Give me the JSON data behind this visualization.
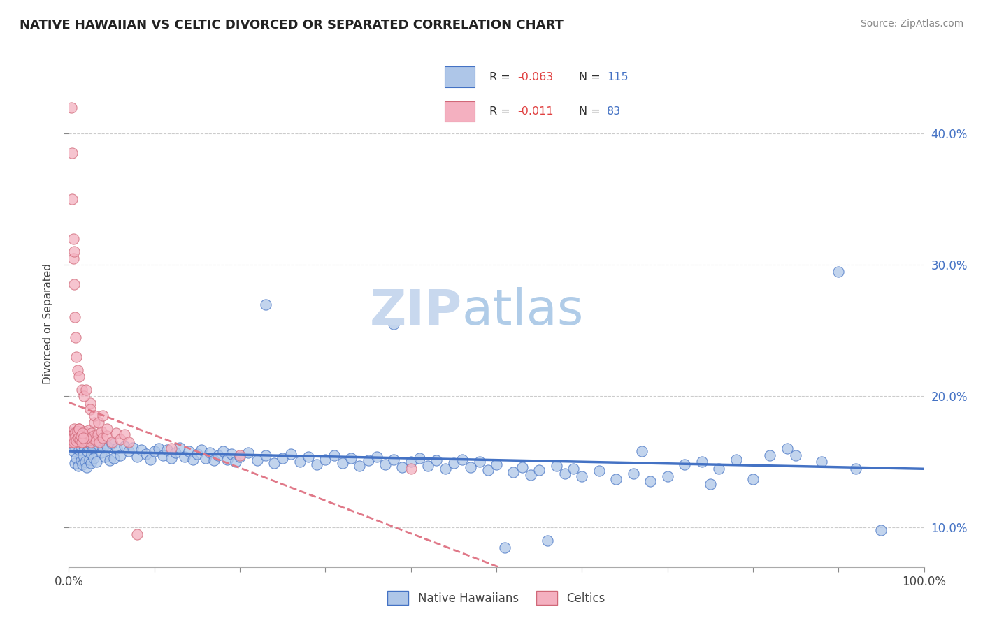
{
  "title": "NATIVE HAWAIIAN VS CELTIC DIVORCED OR SEPARATED CORRELATION CHART",
  "source": "Source: ZipAtlas.com",
  "ylabel": "Divorced or Separated",
  "color_hawaiian": "#aec6e8",
  "color_hawaiian_edge": "#4472c4",
  "color_celtic": "#f4b0c0",
  "color_celtic_edge": "#d06878",
  "color_hawaiian_line": "#4472c4",
  "color_celtic_line": "#e07888",
  "watermark_zip": "ZIP",
  "watermark_atlas": "atlas",
  "xlim": [
    0,
    100
  ],
  "ylim": [
    7,
    44
  ],
  "ytick_positions": [
    10,
    20,
    30,
    40
  ],
  "yticklabels_right": [
    "10.0%",
    "20.0%",
    "30.0%",
    "40.0%"
  ],
  "xtick_positions": [
    0,
    10,
    20,
    30,
    40,
    50,
    60,
    70,
    80,
    90,
    100
  ],
  "hawaiian_points": [
    [
      0.3,
      16.5
    ],
    [
      0.5,
      15.8
    ],
    [
      0.6,
      17.2
    ],
    [
      0.7,
      14.9
    ],
    [
      0.8,
      16.1
    ],
    [
      0.9,
      15.3
    ],
    [
      1.0,
      16.8
    ],
    [
      1.1,
      14.7
    ],
    [
      1.2,
      15.9
    ],
    [
      1.3,
      16.3
    ],
    [
      1.4,
      15.1
    ],
    [
      1.5,
      16.7
    ],
    [
      1.6,
      14.8
    ],
    [
      1.7,
      15.5
    ],
    [
      1.8,
      16.2
    ],
    [
      1.9,
      15.0
    ],
    [
      2.0,
      16.5
    ],
    [
      2.1,
      14.6
    ],
    [
      2.2,
      15.8
    ],
    [
      2.3,
      16.1
    ],
    [
      2.4,
      15.2
    ],
    [
      2.5,
      16.4
    ],
    [
      2.6,
      14.9
    ],
    [
      2.7,
      15.6
    ],
    [
      2.8,
      16.0
    ],
    [
      2.9,
      15.3
    ],
    [
      3.0,
      16.6
    ],
    [
      3.2,
      15.0
    ],
    [
      3.5,
      16.3
    ],
    [
      3.8,
      15.7
    ],
    [
      4.0,
      16.1
    ],
    [
      4.2,
      15.4
    ],
    [
      4.5,
      16.2
    ],
    [
      4.8,
      15.1
    ],
    [
      5.0,
      16.4
    ],
    [
      5.3,
      15.3
    ],
    [
      5.6,
      16.0
    ],
    [
      6.0,
      15.5
    ],
    [
      6.5,
      16.2
    ],
    [
      7.0,
      15.8
    ],
    [
      7.5,
      16.1
    ],
    [
      8.0,
      15.4
    ],
    [
      8.5,
      15.9
    ],
    [
      9.0,
      15.6
    ],
    [
      9.5,
      15.2
    ],
    [
      10.0,
      15.8
    ],
    [
      10.5,
      16.0
    ],
    [
      11.0,
      15.5
    ],
    [
      11.5,
      15.9
    ],
    [
      12.0,
      15.3
    ],
    [
      12.5,
      15.7
    ],
    [
      13.0,
      16.1
    ],
    [
      13.5,
      15.4
    ],
    [
      14.0,
      15.8
    ],
    [
      14.5,
      15.2
    ],
    [
      15.0,
      15.6
    ],
    [
      15.5,
      15.9
    ],
    [
      16.0,
      15.3
    ],
    [
      16.5,
      15.7
    ],
    [
      17.0,
      15.1
    ],
    [
      17.5,
      15.5
    ],
    [
      18.0,
      15.8
    ],
    [
      18.5,
      15.2
    ],
    [
      19.0,
      15.6
    ],
    [
      19.5,
      15.0
    ],
    [
      20.0,
      15.4
    ],
    [
      21.0,
      15.7
    ],
    [
      22.0,
      15.1
    ],
    [
      23.0,
      15.5
    ],
    [
      24.0,
      14.9
    ],
    [
      25.0,
      15.3
    ],
    [
      26.0,
      15.6
    ],
    [
      27.0,
      15.0
    ],
    [
      28.0,
      15.4
    ],
    [
      29.0,
      14.8
    ],
    [
      30.0,
      15.2
    ],
    [
      31.0,
      15.5
    ],
    [
      32.0,
      14.9
    ],
    [
      33.0,
      15.3
    ],
    [
      34.0,
      14.7
    ],
    [
      35.0,
      15.1
    ],
    [
      36.0,
      15.4
    ],
    [
      37.0,
      14.8
    ],
    [
      38.0,
      15.2
    ],
    [
      39.0,
      14.6
    ],
    [
      40.0,
      15.0
    ],
    [
      41.0,
      15.3
    ],
    [
      42.0,
      14.7
    ],
    [
      43.0,
      15.1
    ],
    [
      44.0,
      14.5
    ],
    [
      45.0,
      14.9
    ],
    [
      46.0,
      15.2
    ],
    [
      47.0,
      14.6
    ],
    [
      48.0,
      15.0
    ],
    [
      49.0,
      14.4
    ],
    [
      50.0,
      14.8
    ],
    [
      51.0,
      8.5
    ],
    [
      52.0,
      14.2
    ],
    [
      53.0,
      14.6
    ],
    [
      54.0,
      14.0
    ],
    [
      55.0,
      14.4
    ],
    [
      56.0,
      9.0
    ],
    [
      57.0,
      14.7
    ],
    [
      58.0,
      14.1
    ],
    [
      59.0,
      14.5
    ],
    [
      60.0,
      13.9
    ],
    [
      62.0,
      14.3
    ],
    [
      64.0,
      13.7
    ],
    [
      66.0,
      14.1
    ],
    [
      67.0,
      15.8
    ],
    [
      68.0,
      13.5
    ],
    [
      70.0,
      13.9
    ],
    [
      72.0,
      14.8
    ],
    [
      74.0,
      15.0
    ],
    [
      75.0,
      13.3
    ],
    [
      76.0,
      14.5
    ],
    [
      78.0,
      15.2
    ],
    [
      80.0,
      13.7
    ],
    [
      82.0,
      15.5
    ],
    [
      84.0,
      16.0
    ],
    [
      85.0,
      15.5
    ],
    [
      88.0,
      15.0
    ],
    [
      90.0,
      29.5
    ],
    [
      92.0,
      14.5
    ],
    [
      95.0,
      9.8
    ],
    [
      23.0,
      27.0
    ],
    [
      38.0,
      25.5
    ]
  ],
  "celtic_points": [
    [
      0.2,
      17.2
    ],
    [
      0.3,
      17.0
    ],
    [
      0.4,
      16.5
    ],
    [
      0.5,
      16.8
    ],
    [
      0.6,
      17.5
    ],
    [
      0.7,
      17.1
    ],
    [
      0.8,
      16.9
    ],
    [
      0.9,
      16.6
    ],
    [
      1.0,
      17.3
    ],
    [
      1.1,
      17.0
    ],
    [
      1.2,
      17.5
    ],
    [
      1.3,
      16.8
    ],
    [
      1.4,
      17.2
    ],
    [
      1.5,
      16.7
    ],
    [
      1.6,
      17.0
    ],
    [
      1.7,
      16.5
    ],
    [
      1.8,
      17.3
    ],
    [
      1.9,
      16.8
    ],
    [
      2.0,
      17.1
    ],
    [
      2.1,
      16.6
    ],
    [
      2.2,
      16.9
    ],
    [
      2.3,
      17.4
    ],
    [
      2.4,
      16.7
    ],
    [
      2.5,
      19.5
    ],
    [
      2.6,
      16.5
    ],
    [
      2.7,
      17.2
    ],
    [
      2.8,
      16.8
    ],
    [
      2.9,
      17.0
    ],
    [
      3.0,
      18.0
    ],
    [
      3.2,
      16.6
    ],
    [
      3.4,
      17.1
    ],
    [
      3.6,
      16.5
    ],
    [
      3.8,
      17.3
    ],
    [
      4.0,
      16.8
    ],
    [
      4.5,
      17.0
    ],
    [
      5.0,
      16.5
    ],
    [
      5.5,
      17.2
    ],
    [
      6.0,
      16.7
    ],
    [
      6.5,
      17.1
    ],
    [
      7.0,
      16.5
    ],
    [
      8.0,
      9.5
    ],
    [
      12.0,
      16.0
    ],
    [
      20.0,
      15.5
    ],
    [
      40.0,
      14.5
    ],
    [
      0.3,
      42.0
    ],
    [
      0.4,
      38.5
    ],
    [
      0.4,
      35.0
    ],
    [
      0.5,
      32.0
    ],
    [
      0.5,
      30.5
    ],
    [
      0.6,
      31.0
    ],
    [
      0.6,
      28.5
    ],
    [
      0.7,
      26.0
    ],
    [
      0.8,
      24.5
    ],
    [
      0.9,
      23.0
    ],
    [
      1.0,
      22.0
    ],
    [
      1.2,
      21.5
    ],
    [
      1.5,
      20.5
    ],
    [
      1.8,
      20.0
    ],
    [
      2.0,
      20.5
    ],
    [
      2.5,
      19.0
    ],
    [
      3.0,
      18.5
    ],
    [
      3.5,
      18.0
    ],
    [
      4.0,
      18.5
    ],
    [
      4.5,
      17.5
    ],
    [
      0.5,
      17.0
    ],
    [
      1.0,
      16.5
    ],
    [
      2.0,
      16.8
    ],
    [
      1.5,
      17.2
    ],
    [
      0.3,
      16.5
    ],
    [
      0.4,
      17.0
    ],
    [
      0.5,
      16.8
    ],
    [
      0.6,
      16.5
    ],
    [
      0.7,
      17.2
    ],
    [
      0.8,
      16.9
    ],
    [
      0.9,
      16.6
    ],
    [
      1.0,
      17.3
    ],
    [
      1.1,
      16.8
    ],
    [
      1.2,
      17.5
    ],
    [
      1.3,
      16.7
    ],
    [
      1.4,
      17.0
    ],
    [
      1.5,
      16.5
    ],
    [
      1.6,
      17.2
    ],
    [
      1.7,
      16.8
    ]
  ]
}
